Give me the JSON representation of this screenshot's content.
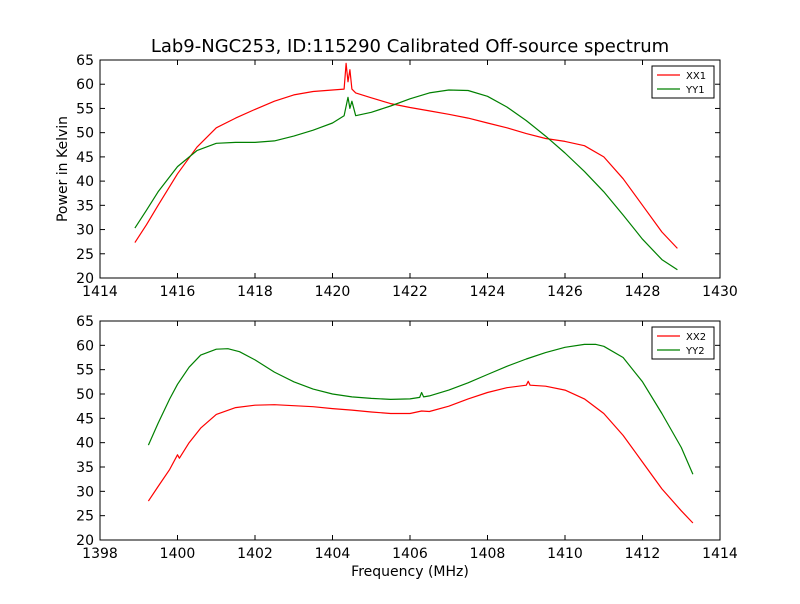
{
  "title": "Lab9-NGC253, ID:115290 Calibrated Off-source spectrum",
  "colors": {
    "red": "#ff0000",
    "green": "#008000",
    "axes": "#000000"
  },
  "chart_data": [
    {
      "type": "line",
      "ylabel": "Power in Kelvin",
      "xlabel": "",
      "xlim": [
        1414,
        1430
      ],
      "ylim": [
        20,
        65
      ],
      "xticks": [
        1414,
        1416,
        1418,
        1420,
        1422,
        1424,
        1426,
        1428,
        1430
      ],
      "yticks": [
        20,
        25,
        30,
        35,
        40,
        45,
        50,
        55,
        60,
        65
      ],
      "legend_position": "top-right",
      "grid": false,
      "series": [
        {
          "name": "XX1",
          "color": "#ff0000",
          "x": [
            1414.9,
            1415.2,
            1415.5,
            1416.0,
            1416.5,
            1417.0,
            1417.5,
            1418.0,
            1418.5,
            1419.0,
            1419.5,
            1420.0,
            1420.3,
            1420.35,
            1420.4,
            1420.45,
            1420.5,
            1420.6,
            1421.0,
            1421.5,
            1422.0,
            1422.5,
            1423.0,
            1423.5,
            1424.0,
            1424.5,
            1425.0,
            1425.5,
            1426.0,
            1426.5,
            1427.0,
            1427.5,
            1428.0,
            1428.5,
            1428.9
          ],
          "y": [
            27.3,
            31.0,
            35.0,
            41.5,
            47.0,
            51.0,
            53.0,
            54.8,
            56.5,
            57.8,
            58.5,
            58.8,
            59.0,
            64.3,
            60.5,
            63.0,
            59.0,
            58.2,
            57.2,
            56.0,
            55.2,
            54.5,
            53.8,
            53.0,
            52.0,
            51.0,
            49.8,
            48.8,
            48.2,
            47.3,
            45.0,
            40.5,
            35.0,
            29.5,
            26.1
          ]
        },
        {
          "name": "YY1",
          "color": "#008000",
          "x": [
            1414.9,
            1415.2,
            1415.5,
            1416.0,
            1416.5,
            1417.0,
            1417.5,
            1418.0,
            1418.5,
            1419.0,
            1419.5,
            1420.0,
            1420.3,
            1420.4,
            1420.45,
            1420.5,
            1420.6,
            1421.0,
            1421.5,
            1422.0,
            1422.5,
            1423.0,
            1423.5,
            1424.0,
            1424.5,
            1425.0,
            1425.5,
            1426.0,
            1426.5,
            1427.0,
            1427.5,
            1428.0,
            1428.5,
            1428.9
          ],
          "y": [
            30.3,
            34.0,
            37.8,
            43.0,
            46.3,
            47.8,
            48.0,
            48.0,
            48.3,
            49.3,
            50.5,
            52.0,
            53.5,
            57.3,
            55.0,
            56.5,
            53.5,
            54.2,
            55.5,
            57.0,
            58.2,
            58.8,
            58.7,
            57.5,
            55.3,
            52.5,
            49.3,
            45.8,
            42.0,
            37.8,
            33.0,
            28.0,
            23.8,
            21.7
          ]
        }
      ]
    },
    {
      "type": "line",
      "xlabel": "Frequency (MHz)",
      "ylabel": "",
      "xlim": [
        1398,
        1414
      ],
      "ylim": [
        20,
        65
      ],
      "xticks": [
        1398,
        1400,
        1402,
        1404,
        1406,
        1408,
        1410,
        1412,
        1414
      ],
      "yticks": [
        20,
        25,
        30,
        35,
        40,
        45,
        50,
        55,
        60,
        65
      ],
      "legend_position": "top-right",
      "grid": false,
      "series": [
        {
          "name": "XX2",
          "color": "#ff0000",
          "x": [
            1399.25,
            1399.5,
            1399.8,
            1400.0,
            1400.05,
            1400.3,
            1400.6,
            1401.0,
            1401.5,
            1402.0,
            1402.5,
            1403.0,
            1403.5,
            1404.0,
            1404.5,
            1405.0,
            1405.5,
            1406.0,
            1406.3,
            1406.5,
            1407.0,
            1407.5,
            1408.0,
            1408.5,
            1409.0,
            1409.05,
            1409.1,
            1409.5,
            1410.0,
            1410.5,
            1411.0,
            1411.5,
            1412.0,
            1412.5,
            1413.0,
            1413.3
          ],
          "y": [
            28.0,
            31.0,
            34.5,
            37.5,
            36.8,
            40.0,
            43.0,
            45.8,
            47.2,
            47.7,
            47.8,
            47.6,
            47.4,
            47.0,
            46.7,
            46.3,
            46.0,
            46.0,
            46.5,
            46.4,
            47.5,
            49.0,
            50.3,
            51.3,
            51.8,
            52.6,
            51.8,
            51.6,
            50.8,
            49.0,
            46.0,
            41.5,
            36.0,
            30.5,
            26.0,
            23.5
          ]
        },
        {
          "name": "YY2",
          "color": "#008000",
          "x": [
            1399.25,
            1399.5,
            1399.8,
            1400.0,
            1400.3,
            1400.6,
            1401.0,
            1401.3,
            1401.6,
            1402.0,
            1402.5,
            1403.0,
            1403.5,
            1404.0,
            1404.5,
            1405.0,
            1405.5,
            1406.0,
            1406.25,
            1406.3,
            1406.35,
            1406.5,
            1407.0,
            1407.5,
            1408.0,
            1408.5,
            1409.0,
            1409.5,
            1410.0,
            1410.5,
            1410.8,
            1411.0,
            1411.5,
            1412.0,
            1412.5,
            1413.0,
            1413.3
          ],
          "y": [
            39.5,
            44.0,
            49.0,
            52.0,
            55.5,
            58.0,
            59.2,
            59.3,
            58.7,
            57.0,
            54.5,
            52.5,
            51.0,
            50.0,
            49.4,
            49.1,
            48.9,
            49.0,
            49.3,
            50.3,
            49.4,
            49.6,
            50.8,
            52.3,
            54.0,
            55.7,
            57.2,
            58.5,
            59.6,
            60.2,
            60.2,
            59.8,
            57.5,
            52.5,
            46.0,
            39.0,
            33.5
          ]
        }
      ]
    }
  ]
}
